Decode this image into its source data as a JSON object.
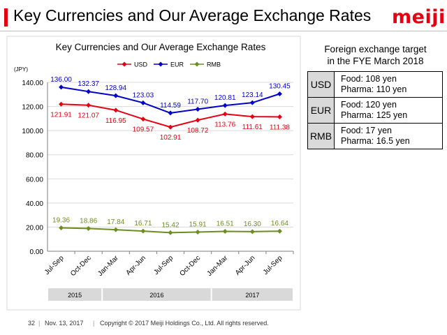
{
  "header": {
    "title": "Key Currencies and Our Average Exchange Rates",
    "logo": "meiji"
  },
  "chart_data": {
    "type": "line",
    "title": "Key Currencies and Our Average Exchange Rates",
    "ylabel": "(JPY)",
    "ylim": [
      0,
      140
    ],
    "yticks": [
      "0.00",
      "20.00",
      "40.00",
      "60.00",
      "80.00",
      "100.00",
      "120.00",
      "140.00"
    ],
    "categories": [
      "Jul-Sep",
      "Oct-Dec",
      "Jan-Mar",
      "Apr-Jun",
      "Jul-Sep",
      "Oct-Dec",
      "Jan-Mar",
      "Apr-Jun",
      "Jul-Sep"
    ],
    "year_groups": [
      {
        "label": "2015",
        "span": 2
      },
      {
        "label": "2016",
        "span": 4
      },
      {
        "label": "2017",
        "span": 3
      }
    ],
    "legend_position": "top",
    "series": [
      {
        "name": "USD",
        "color": "#e60012",
        "marker": "diamond",
        "label_pos": "below",
        "values": [
          121.91,
          121.07,
          116.95,
          109.57,
          102.91,
          108.72,
          113.76,
          111.61,
          111.38
        ],
        "labels": [
          "121.91",
          "121.07",
          "116.95",
          "109.57",
          "102.91",
          "108.72",
          "113.76",
          "111.61",
          "111.38"
        ]
      },
      {
        "name": "EUR",
        "color": "#0000c8",
        "marker": "diamond",
        "label_pos": "above",
        "values": [
          136.0,
          132.37,
          128.94,
          123.03,
          114.59,
          117.7,
          120.81,
          123.14,
          130.45
        ],
        "labels": [
          "136.00",
          "132.37",
          "128.94",
          "123.03",
          "114.59",
          "117.70",
          "120.81",
          "123.14",
          "130.45"
        ]
      },
      {
        "name": "RMB",
        "color": "#6b8e23",
        "marker": "diamond",
        "label_pos": "above",
        "values": [
          19.36,
          18.86,
          17.84,
          16.71,
          15.42,
          15.91,
          16.51,
          16.3,
          16.64
        ],
        "labels": [
          "19.36",
          "18.86",
          "17.84",
          "16.71",
          "15.42",
          "15.91",
          "16.51",
          "16.30",
          "16.64"
        ]
      }
    ]
  },
  "fx_target": {
    "title_line1": "Foreign exchange target",
    "title_line2": "in the FYE March 2018",
    "rows": [
      {
        "currency": "USD",
        "food": "Food: 108 yen",
        "pharma": "Pharma: 110 yen"
      },
      {
        "currency": "EUR",
        "food": "Food: 120 yen",
        "pharma": "Pharma: 125 yen"
      },
      {
        "currency": "RMB",
        "food": "Food: 17 yen",
        "pharma": "Pharma: 16.5 yen"
      }
    ]
  },
  "footer": {
    "page": "32",
    "date": "Nov. 13, 2017",
    "copyright": "Copyright © 2017 Meiji Holdings Co., Ltd. All rights reserved."
  }
}
